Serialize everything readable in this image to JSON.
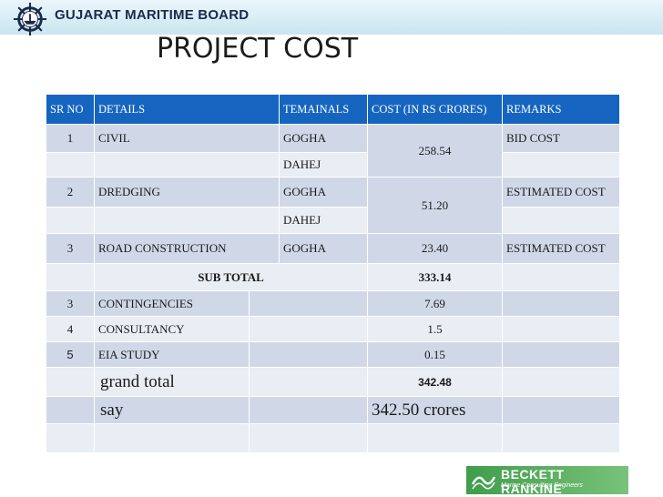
{
  "header": {
    "org_name": "GUJARAT MARITIME BOARD",
    "slide_title": "PROJECT COST"
  },
  "table": {
    "columns": [
      "SR  NO",
      "DETAILS",
      "TEMAINALS",
      "COST (IN RS CRORES)",
      "REMARKS"
    ],
    "rows": [
      {
        "sr": "1",
        "details": "CIVIL",
        "terminal_1": "GOGHA",
        "terminal_2": "DAHEJ",
        "cost": "258.54",
        "remarks": "BID COST"
      },
      {
        "sr": "2",
        "details": "DREDGING",
        "terminal_1": "GOGHA",
        "terminal_2": "DAHEJ",
        "cost": "51.20",
        "remarks": "ESTIMATED COST"
      },
      {
        "sr": "3",
        "details": "ROAD CONSTRUCTION",
        "terminal": "GOGHA",
        "cost": "23.40",
        "remarks": "ESTIMATED COST"
      }
    ],
    "subtotal": {
      "label": "SUB TOTAL",
      "cost": "333.14"
    },
    "extras": [
      {
        "sr": "3",
        "details": "CONTINGENCIES",
        "cost": "7.69"
      },
      {
        "sr": "4",
        "details": "CONSULTANCY",
        "cost": "1.5"
      },
      {
        "sr": "5",
        "details": "EIA STUDY",
        "cost": "0.15"
      }
    ],
    "grand_total": {
      "label": "grand total",
      "cost": "342.48"
    },
    "say": {
      "label": "say",
      "value": "342.50 crores"
    }
  },
  "footer": {
    "brand_name": "BECKETT RANKINE",
    "brand_tagline": "Marine Consulting Engineers"
  },
  "colors": {
    "header_blue": "#1565c0",
    "row_dark": "#d0d8e8",
    "row_light": "#e9edf4",
    "brand_green": "#3f9d4b"
  }
}
